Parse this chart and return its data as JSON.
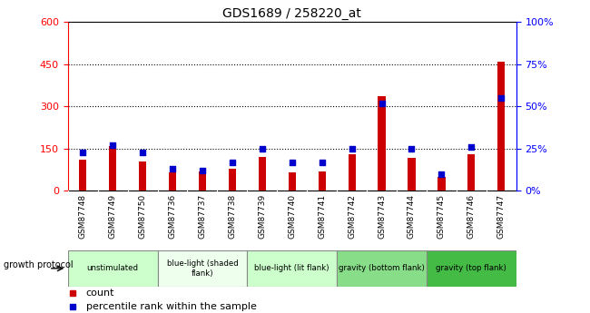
{
  "title": "GDS1689 / 258220_at",
  "samples": [
    "GSM87748",
    "GSM87749",
    "GSM87750",
    "GSM87736",
    "GSM87737",
    "GSM87738",
    "GSM87739",
    "GSM87740",
    "GSM87741",
    "GSM87742",
    "GSM87743",
    "GSM87744",
    "GSM87745",
    "GSM87746",
    "GSM87747"
  ],
  "counts": [
    110,
    158,
    105,
    65,
    70,
    78,
    120,
    65,
    68,
    130,
    335,
    118,
    50,
    130,
    460
  ],
  "percentiles": [
    23,
    27,
    23,
    13,
    12,
    17,
    25,
    17,
    17,
    25,
    52,
    25,
    10,
    26,
    55
  ],
  "groups": [
    {
      "label": "unstimulated",
      "start": 0,
      "end": 3,
      "color": "#ccffcc"
    },
    {
      "label": "blue-light (shaded\nflank)",
      "start": 3,
      "end": 6,
      "color": "#eeffee"
    },
    {
      "label": "blue-light (lit flank)",
      "start": 6,
      "end": 9,
      "color": "#ccffcc"
    },
    {
      "label": "gravity (bottom flank)",
      "start": 9,
      "end": 12,
      "color": "#88dd88"
    },
    {
      "label": "gravity (top flank)",
      "start": 12,
      "end": 15,
      "color": "#44bb44"
    }
  ],
  "ylim_left": [
    0,
    600
  ],
  "ylim_right": [
    0,
    100
  ],
  "yticks_left": [
    0,
    150,
    300,
    450,
    600
  ],
  "yticks_right": [
    0,
    25,
    50,
    75,
    100
  ],
  "bar_color": "#cc0000",
  "dot_color": "#0000cc",
  "bar_width": 0.25,
  "growth_protocol_label": "growth protocol",
  "legend_count_label": "count",
  "legend_percentile_label": "percentile rank within the sample"
}
